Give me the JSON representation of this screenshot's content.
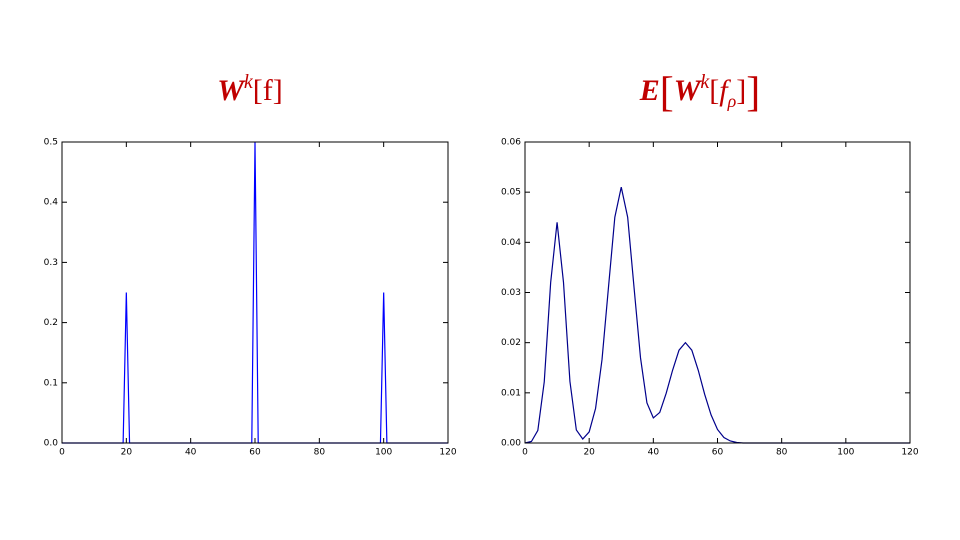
{
  "chart_data": [
    {
      "type": "line",
      "title": [
        "W",
        "k",
        "[f]"
      ],
      "color": "#0000ff",
      "x": [
        0,
        19,
        20,
        21,
        59,
        60,
        61,
        99,
        100,
        101,
        120
      ],
      "values": [
        0,
        0,
        0.25,
        0,
        0,
        0.5,
        0,
        0,
        0.25,
        0,
        0
      ],
      "xlim": [
        0,
        120
      ],
      "ylim": [
        0,
        0.5
      ],
      "xticks": [
        0,
        20,
        40,
        60,
        80,
        100,
        120
      ],
      "yticks": [
        {
          "value": 0,
          "label": "0.0"
        },
        0.1,
        0.2,
        0.3,
        0.4,
        0.5
      ]
    },
    {
      "type": "line",
      "title": [
        "E",
        "[",
        "W",
        "k",
        "[",
        "f",
        "ρ",
        "]",
        "]"
      ],
      "color": "#00008b",
      "x": [
        0,
        2,
        4,
        6,
        8,
        10,
        12,
        14,
        16,
        18,
        20,
        22,
        24,
        26,
        28,
        30,
        32,
        34,
        36,
        38,
        40,
        42,
        44,
        46,
        48,
        50,
        52,
        54,
        56,
        58,
        60,
        62,
        64,
        66,
        68,
        70,
        120
      ],
      "values": [
        0,
        0.0003,
        0.0025,
        0.0122,
        0.032,
        0.044,
        0.032,
        0.0123,
        0.0026,
        0.0008,
        0.0022,
        0.0069,
        0.0166,
        0.0309,
        0.045,
        0.051,
        0.045,
        0.0309,
        0.017,
        0.008,
        0.005,
        0.0061,
        0.0099,
        0.0145,
        0.0185,
        0.02,
        0.0185,
        0.0145,
        0.0097,
        0.0056,
        0.0027,
        0.0011,
        0.0004,
        0.0001,
        0,
        0,
        0
      ],
      "xlim": [
        0,
        120
      ],
      "ylim": [
        0,
        0.06
      ],
      "xticks": [
        0,
        20,
        40,
        60,
        80,
        100,
        120
      ],
      "yticks": [
        {
          "value": 0,
          "label": "0.00"
        },
        {
          "value": 0.01,
          "label": "0.01"
        },
        {
          "value": 0.02,
          "label": "0.02"
        },
        {
          "value": 0.03,
          "label": "0.03"
        },
        {
          "value": 0.04,
          "label": "0.04"
        },
        {
          "value": 0.05,
          "label": "0.05"
        },
        {
          "value": 0.06,
          "label": "0.06"
        }
      ]
    }
  ]
}
